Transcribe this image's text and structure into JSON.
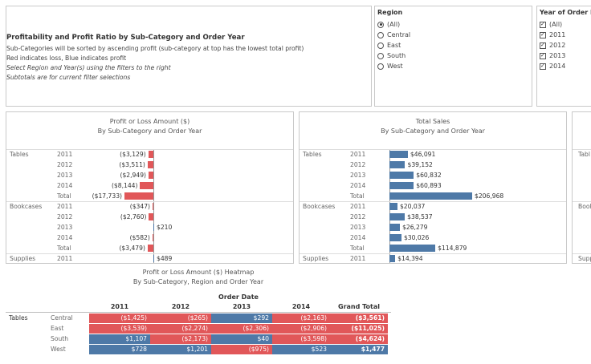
{
  "info_panel": {
    "title": "Profitability and Profit Ratio by Sub-Category and Order Year",
    "line1": "Sub-Categories will be sorted by ascending profit (sub-category at top has the lowest total profit)",
    "line2": "Red indicates loss, Blue indicates profit",
    "line3": "Select Region and Year(s) using the filters to the right",
    "line4": "Subtotals are for current filter selections"
  },
  "region_filter": {
    "label": "Region",
    "options": [
      "(All)",
      "Central",
      "East",
      "South",
      "West"
    ],
    "selected": "(All)"
  },
  "year_filter": {
    "label": "Year of Order Date",
    "options": [
      "(All)",
      "2011",
      "2012",
      "2013",
      "2014"
    ]
  },
  "profit_chart": {
    "title_line1": "Profit or Loss Amount ($)",
    "title_line2": "By Sub-Category and Order Year"
  },
  "sales_chart": {
    "title_line1": "Total Sales",
    "title_line2": "By Sub-Category and Order Year"
  },
  "third_panel": {
    "row_labels": [
      "Tabl",
      "Book",
      "Supp"
    ]
  },
  "heatmap": {
    "title_line1": "Profit or Loss Amount ($) Heatmap",
    "title_line2": "By Sub-Category, Region and Order Year",
    "col_group": "Order Date",
    "columns": [
      "2011",
      "2012",
      "2013",
      "2014",
      "Grand Total"
    ],
    "category": "Tables",
    "regions": [
      "Central",
      "East",
      "South",
      "West"
    ],
    "values": [
      [
        "($1,425)",
        "($265)",
        "$292",
        "($2,163)",
        "($3,561)"
      ],
      [
        "($3,539)",
        "($2,274)",
        "($2,306)",
        "($2,906)",
        "($11,025)"
      ],
      [
        "$1,107",
        "($2,173)",
        "$40",
        "($3,598)",
        "($4,624)"
      ],
      [
        "$728",
        "$1,201",
        "($975)",
        "$523",
        "$1,477"
      ]
    ],
    "signs": [
      [
        -1,
        -1,
        1,
        -1,
        -1
      ],
      [
        -1,
        -1,
        -1,
        -1,
        -1
      ],
      [
        1,
        -1,
        1,
        -1,
        -1
      ],
      [
        1,
        1,
        -1,
        1,
        1
      ]
    ]
  },
  "chart_data": [
    {
      "type": "bar",
      "title": "Profit or Loss Amount ($) By Sub-Category and Order Year",
      "rows": [
        {
          "category": "Tables",
          "year": "2011",
          "value": -3129,
          "label": "($3,129)"
        },
        {
          "category": "",
          "year": "2012",
          "value": -3511,
          "label": "($3,511)"
        },
        {
          "category": "",
          "year": "2013",
          "value": -2949,
          "label": "($2,949)"
        },
        {
          "category": "",
          "year": "2014",
          "value": -8144,
          "label": "($8,144)"
        },
        {
          "category": "",
          "year": "Total",
          "value": -17733,
          "label": "($17,733)"
        },
        {
          "category": "Bookcases",
          "year": "2011",
          "value": -347,
          "label": "($347)"
        },
        {
          "category": "",
          "year": "2012",
          "value": -2760,
          "label": "($2,760)"
        },
        {
          "category": "",
          "year": "2013",
          "value": 210,
          "label": "$210"
        },
        {
          "category": "",
          "year": "2014",
          "value": -582,
          "label": "($582)"
        },
        {
          "category": "",
          "year": "Total",
          "value": -3479,
          "label": "($3,479)"
        },
        {
          "category": "Supplies",
          "year": "2011",
          "value": 489,
          "label": "$489"
        }
      ]
    },
    {
      "type": "bar",
      "title": "Total Sales By Sub-Category and Order Year",
      "rows": [
        {
          "category": "Tables",
          "year": "2011",
          "value": 46091,
          "label": "$46,091"
        },
        {
          "category": "",
          "year": "2012",
          "value": 39152,
          "label": "$39,152"
        },
        {
          "category": "",
          "year": "2013",
          "value": 60832,
          "label": "$60,832"
        },
        {
          "category": "",
          "year": "2014",
          "value": 60893,
          "label": "$60,893"
        },
        {
          "category": "",
          "year": "Total",
          "value": 206968,
          "label": "$206,968"
        },
        {
          "category": "Bookcases",
          "year": "2011",
          "value": 20037,
          "label": "$20,037"
        },
        {
          "category": "",
          "year": "2012",
          "value": 38537,
          "label": "$38,537"
        },
        {
          "category": "",
          "year": "2013",
          "value": 26279,
          "label": "$26,279"
        },
        {
          "category": "",
          "year": "2014",
          "value": 30026,
          "label": "$30,026"
        },
        {
          "category": "",
          "year": "Total",
          "value": 114879,
          "label": "$114,879"
        },
        {
          "category": "Supplies",
          "year": "2011",
          "value": 14394,
          "label": "$14,394"
        }
      ]
    }
  ]
}
